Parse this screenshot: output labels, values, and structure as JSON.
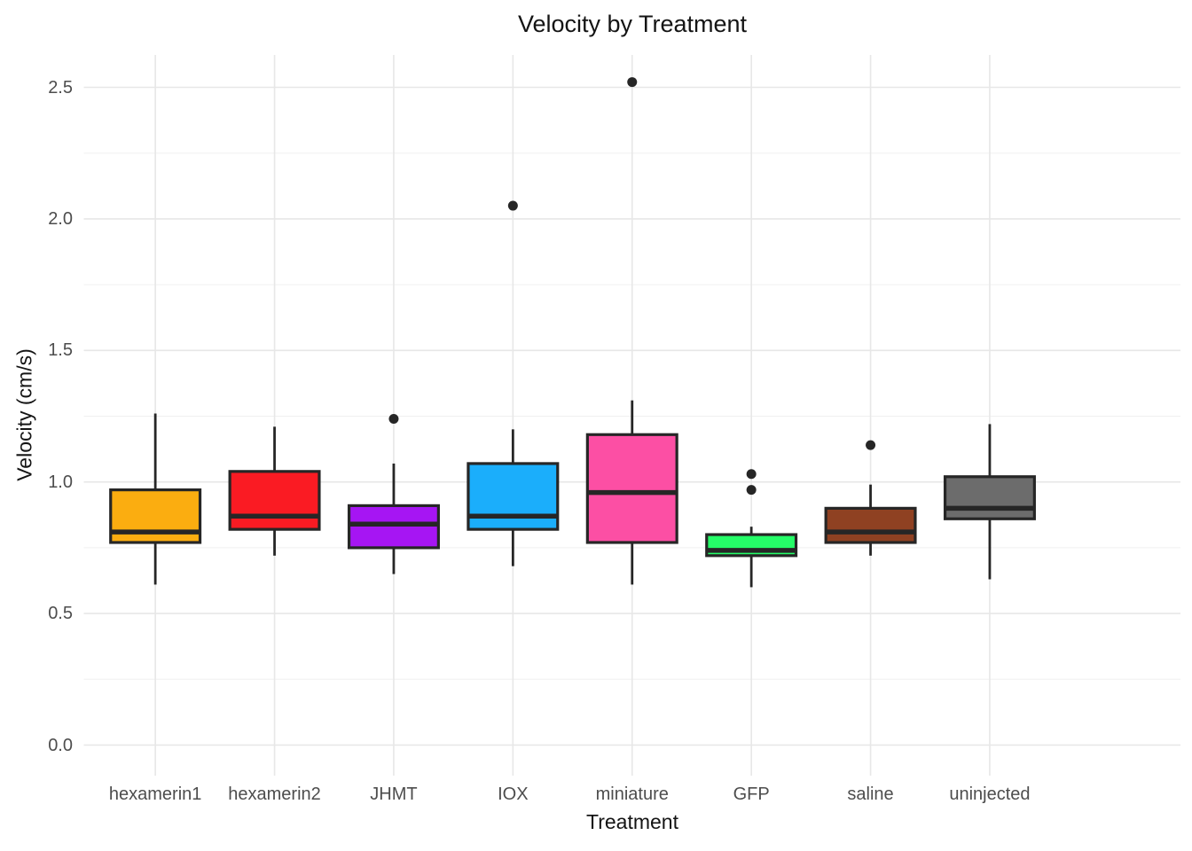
{
  "chart": {
    "title": "Velocity by Treatment",
    "x_axis_title": "Treatment",
    "y_axis_title": "Velocity (cm/s)"
  },
  "colors": {
    "background": "#FFFFFF",
    "stroke": "#262626",
    "grid_major": "#E7E7E7",
    "grid_minor": "#F0F0F0",
    "tick_label": "#4D4D4D",
    "text": "#141414"
  },
  "chart_data": {
    "type": "boxplot",
    "title": "Velocity by Treatment",
    "xlabel": "Treatment",
    "ylabel": "Velocity (cm/s)",
    "ylim": [
      -0.1,
      2.62
    ],
    "y_ticks": [
      0.0,
      0.5,
      1.0,
      1.5,
      2.0,
      2.5
    ],
    "y_minor_ticks": [
      0.25,
      0.75,
      1.25,
      1.75,
      2.25
    ],
    "grid": true,
    "legend": "none",
    "categories": [
      "hexamerin1",
      "hexamerin2",
      "JHMT",
      "IOX",
      "miniature",
      "GFP",
      "saline",
      "uninjected"
    ],
    "series": [
      {
        "name": "hexamerin1",
        "color": "#FBAD10",
        "whisker_low": 0.61,
        "q1": 0.77,
        "median": 0.81,
        "q3": 0.97,
        "whisker_high": 1.26,
        "outliers": []
      },
      {
        "name": "hexamerin2",
        "color": "#FA1B23",
        "whisker_low": 0.72,
        "q1": 0.82,
        "median": 0.87,
        "q3": 1.04,
        "whisker_high": 1.21,
        "outliers": []
      },
      {
        "name": "JHMT",
        "color": "#A615F3",
        "whisker_low": 0.65,
        "q1": 0.75,
        "median": 0.84,
        "q3": 0.91,
        "whisker_high": 1.07,
        "outliers": [
          1.24
        ]
      },
      {
        "name": "IOX",
        "color": "#1BAEFB",
        "whisker_low": 0.68,
        "q1": 0.82,
        "median": 0.87,
        "q3": 1.07,
        "whisker_high": 1.2,
        "outliers": [
          2.05
        ]
      },
      {
        "name": "miniature",
        "color": "#FC4FA4",
        "whisker_low": 0.61,
        "q1": 0.77,
        "median": 0.96,
        "q3": 1.18,
        "whisker_high": 1.31,
        "outliers": [
          2.52
        ]
      },
      {
        "name": "GFP",
        "color": "#25FD68",
        "whisker_low": 0.6,
        "q1": 0.72,
        "median": 0.74,
        "q3": 0.8,
        "whisker_high": 0.83,
        "outliers": [
          0.97,
          1.03
        ]
      },
      {
        "name": "saline",
        "color": "#8F4122",
        "whisker_low": 0.72,
        "q1": 0.77,
        "median": 0.81,
        "q3": 0.9,
        "whisker_high": 0.99,
        "outliers": [
          1.14
        ]
      },
      {
        "name": "uninjected",
        "color": "#6C6C6C",
        "whisker_low": 0.63,
        "q1": 0.86,
        "median": 0.9,
        "q3": 1.02,
        "whisker_high": 1.22,
        "outliers": []
      }
    ]
  }
}
